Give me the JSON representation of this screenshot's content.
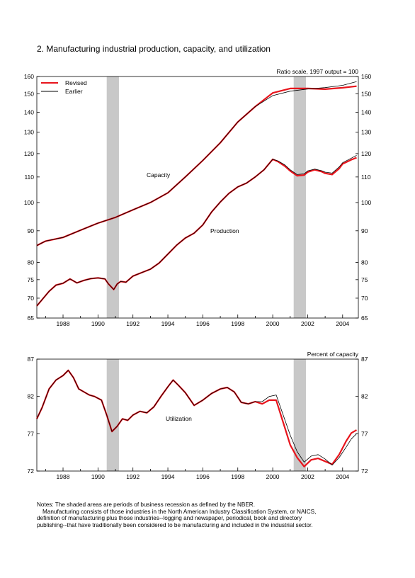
{
  "title": "2. Manufacturing industrial production, capacity, and utilization",
  "notes": [
    "Notes: The shaded areas are periods of business recession as defined by the NBER.",
    "Manufacturing consists of those industries in the North American Industry Classification System, or NAICS,",
    "definition of manufacturing plus those industries--logging and newspaper, periodical, book and directory",
    "publishing--that have traditionally been considered to be manufacturing and included in the industrial sector."
  ],
  "colors": {
    "revised": "#e8141c",
    "earlier": "#000000",
    "recession": "#c8c8c8"
  },
  "chart_data": [
    {
      "type": "line",
      "scale": "log",
      "scale_note": "Ratio scale, 1997 output = 100",
      "xlim": [
        1986.5,
        2004.9
      ],
      "ylim": [
        65,
        160
      ],
      "x_ticks": [
        "1988",
        "1990",
        "1992",
        "1994",
        "1996",
        "1998",
        "2000",
        "2002",
        "2004"
      ],
      "y_ticks": [
        "65",
        "70",
        "75",
        "80",
        "90",
        "100",
        "110",
        "120",
        "130",
        "140",
        "150",
        "160"
      ],
      "recessions": [
        [
          1990.5,
          1991.2
        ],
        [
          2001.2,
          2001.9
        ]
      ],
      "legend": [
        "Revised",
        "Earlier"
      ],
      "annotations": [
        "Capacity",
        "Production"
      ],
      "series": [
        {
          "name": "Capacity",
          "variant": "Revised",
          "x": [
            1986.5,
            1987,
            1988,
            1989,
            1990,
            1991,
            1992,
            1993,
            1994,
            1995,
            1996,
            1997,
            1998,
            1999,
            2000,
            2001,
            2002,
            2003,
            2004,
            2004.8
          ],
          "y": [
            85.2,
            86.6,
            87.8,
            90.2,
            92.6,
            94.6,
            97.3,
            100.0,
            103.7,
            110.0,
            117.0,
            125.0,
            135.0,
            143.0,
            150.5,
            153.0,
            153.0,
            152.6,
            153.4,
            154.3
          ]
        },
        {
          "name": "Capacity",
          "variant": "Earlier",
          "x": [
            1986.5,
            1987,
            1988,
            1989,
            1990,
            1991,
            1992,
            1993,
            1994,
            1995,
            1996,
            1997,
            1998,
            1999,
            2000,
            2001,
            2002,
            2003,
            2004,
            2004.8
          ],
          "y": [
            85.2,
            86.6,
            87.8,
            90.2,
            92.6,
            94.6,
            97.3,
            100.0,
            103.7,
            110.0,
            117.0,
            125.0,
            135.0,
            143.0,
            149.0,
            151.5,
            152.7,
            153.5,
            154.8,
            157.0
          ]
        },
        {
          "name": "Production",
          "variant": "Revised",
          "x": [
            1986.5,
            1986.8,
            1987.2,
            1987.6,
            1988,
            1988.4,
            1988.8,
            1989.2,
            1989.6,
            1990,
            1990.4,
            1990.6,
            1990.9,
            1991.1,
            1991.3,
            1991.6,
            1992,
            1992.5,
            1993,
            1993.5,
            1994,
            1994.5,
            1995,
            1995.5,
            1996,
            1996.5,
            1997,
            1997.5,
            1998,
            1998.5,
            1999,
            1999.5,
            2000,
            2000.3,
            2000.7,
            2001,
            2001.4,
            2001.8,
            2002,
            2002.4,
            2002.8,
            2003,
            2003.4,
            2003.8,
            2004,
            2004.5,
            2004.8
          ],
          "y": [
            68.0,
            69.6,
            71.8,
            73.5,
            74.0,
            75.2,
            74.1,
            74.8,
            75.3,
            75.5,
            75.2,
            73.8,
            72.3,
            73.8,
            74.5,
            74.3,
            76.0,
            77.0,
            78.0,
            79.8,
            82.5,
            85.3,
            87.6,
            89.2,
            92.0,
            96.5,
            100.2,
            103.5,
            106.0,
            107.5,
            110.0,
            113.0,
            117.5,
            116.5,
            114.5,
            112.5,
            110.5,
            110.8,
            112.0,
            113.0,
            112.2,
            111.5,
            111.0,
            113.5,
            115.5,
            117.3,
            118.2
          ]
        },
        {
          "name": "Production",
          "variant": "Earlier",
          "x": [
            1986.5,
            1986.8,
            1987.2,
            1987.6,
            1988,
            1988.4,
            1988.8,
            1989.2,
            1989.6,
            1990,
            1990.4,
            1990.6,
            1990.9,
            1991.1,
            1991.3,
            1991.6,
            1992,
            1992.5,
            1993,
            1993.5,
            1994,
            1994.5,
            1995,
            1995.5,
            1996,
            1996.5,
            1997,
            1997.5,
            1998,
            1998.5,
            1999,
            1999.5,
            2000,
            2000.3,
            2000.7,
            2001,
            2001.4,
            2001.8,
            2002,
            2002.4,
            2002.8,
            2003,
            2003.4,
            2003.8,
            2004,
            2004.5,
            2004.8
          ],
          "y": [
            68.0,
            69.6,
            71.8,
            73.5,
            74.0,
            75.2,
            74.1,
            74.8,
            75.3,
            75.5,
            75.2,
            73.8,
            72.3,
            73.8,
            74.5,
            74.3,
            76.0,
            77.0,
            78.0,
            79.8,
            82.5,
            85.3,
            87.6,
            89.2,
            92.0,
            96.5,
            100.2,
            103.5,
            106.0,
            107.5,
            110.0,
            113.0,
            117.5,
            116.8,
            115.0,
            113.0,
            111.0,
            111.3,
            112.5,
            113.3,
            112.6,
            112.0,
            111.6,
            114.2,
            116.0,
            118.0,
            119.2
          ]
        }
      ]
    },
    {
      "type": "line",
      "scale_note": "Percent of capacity",
      "xlim": [
        1986.5,
        2004.9
      ],
      "ylim": [
        72,
        87
      ],
      "x_ticks": [
        "1988",
        "1990",
        "1992",
        "1994",
        "1996",
        "1998",
        "2000",
        "2002",
        "2004"
      ],
      "y_ticks": [
        "72",
        "77",
        "82",
        "87"
      ],
      "recessions": [
        [
          1990.5,
          1991.2
        ],
        [
          2001.2,
          2001.9
        ]
      ],
      "annotations": [
        "Utilization"
      ],
      "series": [
        {
          "name": "Utilization",
          "variant": "Revised",
          "x": [
            1986.5,
            1986.8,
            1987.2,
            1987.6,
            1988,
            1988.3,
            1988.6,
            1988.9,
            1989.2,
            1989.5,
            1989.8,
            1990.2,
            1990.5,
            1990.8,
            1991.1,
            1991.4,
            1991.7,
            1992,
            1992.4,
            1992.8,
            1993.2,
            1993.6,
            1994,
            1994.3,
            1994.6,
            1995,
            1995.5,
            1996,
            1996.5,
            1997,
            1997.4,
            1997.8,
            1998.2,
            1998.6,
            1999,
            1999.4,
            1999.8,
            2000.2,
            2000.6,
            2001,
            2001.4,
            2001.8,
            2002.2,
            2002.6,
            2003,
            2003.4,
            2003.8,
            2004.2,
            2004.5,
            2004.8
          ],
          "y": [
            79.0,
            80.5,
            83.0,
            84.2,
            84.8,
            85.5,
            84.5,
            83.0,
            82.6,
            82.2,
            82.0,
            81.5,
            79.5,
            77.3,
            78.0,
            79.0,
            78.8,
            79.5,
            80.0,
            79.8,
            80.6,
            82.0,
            83.3,
            84.2,
            83.5,
            82.5,
            80.8,
            81.5,
            82.4,
            83.0,
            83.2,
            82.6,
            81.2,
            81.0,
            81.3,
            81.0,
            81.5,
            81.5,
            78.5,
            75.5,
            73.8,
            72.6,
            73.5,
            73.7,
            73.3,
            72.9,
            74.2,
            76.0,
            77.1,
            77.5
          ]
        },
        {
          "name": "Utilization",
          "variant": "Earlier",
          "x": [
            1986.5,
            1986.8,
            1987.2,
            1987.6,
            1988,
            1988.3,
            1988.6,
            1988.9,
            1989.2,
            1989.5,
            1989.8,
            1990.2,
            1990.5,
            1990.8,
            1991.1,
            1991.4,
            1991.7,
            1992,
            1992.4,
            1992.8,
            1993.2,
            1993.6,
            1994,
            1994.3,
            1994.6,
            1995,
            1995.5,
            1996,
            1996.5,
            1997,
            1997.4,
            1997.8,
            1998.2,
            1998.6,
            1999,
            1999.4,
            1999.8,
            2000.2,
            2000.6,
            2001,
            2001.4,
            2001.8,
            2002.2,
            2002.6,
            2003,
            2003.4,
            2003.8,
            2004.2,
            2004.5,
            2004.8
          ],
          "y": [
            79.0,
            80.5,
            83.0,
            84.2,
            84.8,
            85.5,
            84.5,
            83.0,
            82.6,
            82.2,
            82.0,
            81.5,
            79.5,
            77.3,
            78.0,
            79.0,
            78.8,
            79.5,
            80.0,
            79.8,
            80.6,
            82.0,
            83.3,
            84.2,
            83.5,
            82.5,
            80.8,
            81.5,
            82.4,
            83.0,
            83.2,
            82.6,
            81.2,
            81.0,
            81.3,
            81.3,
            82.0,
            82.2,
            79.5,
            76.8,
            74.6,
            73.2,
            74.0,
            74.2,
            73.6,
            72.8,
            73.8,
            75.2,
            76.3,
            77.0
          ]
        }
      ]
    }
  ]
}
